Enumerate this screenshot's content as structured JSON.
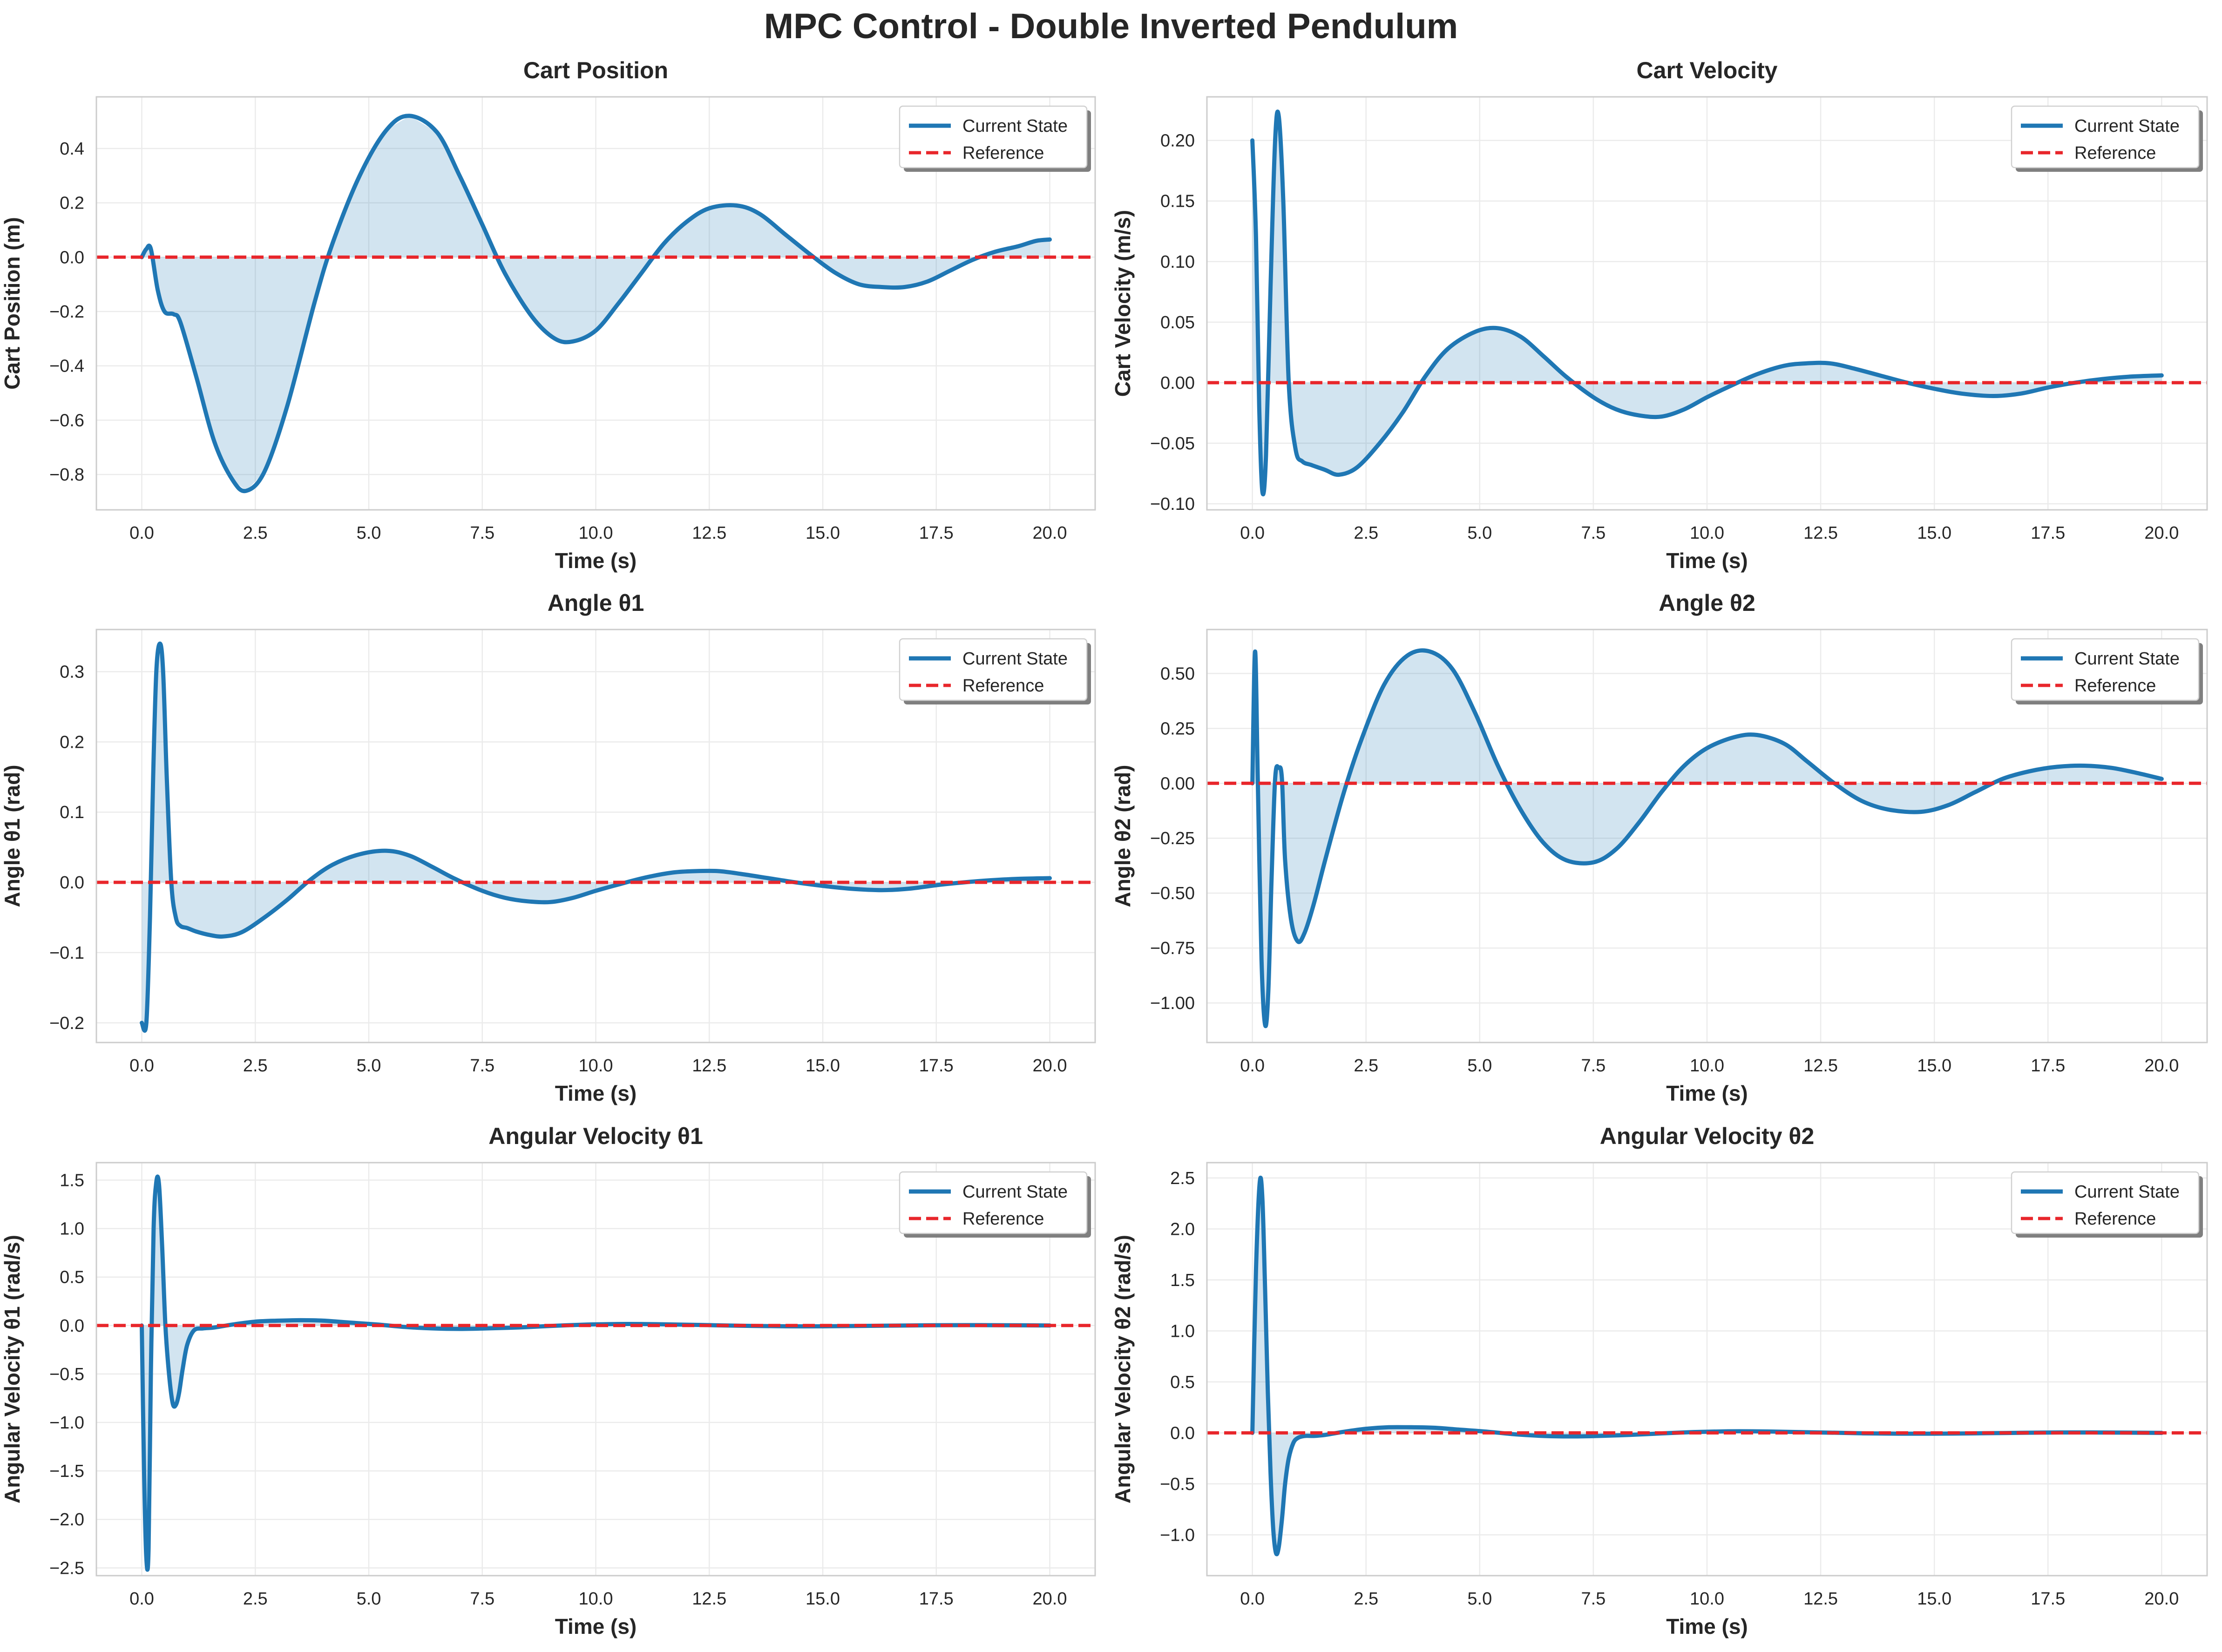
{
  "figure": {
    "title": "MPC Control - Double Inverted Pendulum"
  },
  "style": {
    "current_color": "#1f77b4",
    "reference_color": "#e8262b",
    "fill_color": "#1f77b4",
    "fill_opacity": 0.2,
    "grid_color": "#ebebeb",
    "frame_color": "#cccccc",
    "legend_shadow": "#7f7f7f"
  },
  "chart_data": [
    {
      "type": "line",
      "title": "Cart Position",
      "xlabel": "Time (s)",
      "ylabel": "Cart Position (m)",
      "xlim": [
        -1,
        21
      ],
      "ylim": [
        -0.93,
        0.59
      ],
      "xticks": [
        0,
        2.5,
        5,
        7.5,
        10,
        12.5,
        15,
        17.5,
        20
      ],
      "xtick_labels": [
        "0.0",
        "2.5",
        "5.0",
        "7.5",
        "10.0",
        "12.5",
        "15.0",
        "17.5",
        "20.0"
      ],
      "yticks": [
        -0.8,
        -0.6,
        -0.4,
        -0.2,
        0,
        0.2,
        0.4
      ],
      "ytick_labels": [
        "−0.8",
        "−0.6",
        "−0.4",
        "−0.2",
        "0.0",
        "0.2",
        "0.4"
      ],
      "grid": true,
      "fill_between_reference": true,
      "legend": {
        "position": "upper-right",
        "entries": [
          "Current State",
          "Reference"
        ]
      },
      "series": [
        {
          "name": "Current State",
          "style": "solid",
          "x": [
            0,
            0.1,
            0.2,
            0.35,
            0.5,
            0.7,
            0.85,
            1.2,
            1.6,
            2.0,
            2.3,
            2.7,
            3.2,
            3.8,
            4.2,
            4.8,
            5.4,
            5.9,
            6.5,
            7.0,
            7.5,
            8.0,
            8.6,
            9.1,
            9.5,
            10.0,
            10.5,
            11.0,
            11.5,
            12.0,
            12.5,
            13.1,
            13.6,
            14.2,
            14.8,
            15.3,
            15.8,
            16.3,
            16.8,
            17.3,
            17.8,
            18.3,
            18.8,
            19.3,
            19.7,
            20.0
          ],
          "y": [
            0,
            0.03,
            0.03,
            -0.12,
            -0.2,
            -0.21,
            -0.24,
            -0.44,
            -0.68,
            -0.82,
            -0.86,
            -0.79,
            -0.55,
            -0.17,
            0.05,
            0.3,
            0.47,
            0.52,
            0.46,
            0.3,
            0.12,
            -0.06,
            -0.22,
            -0.3,
            -0.31,
            -0.27,
            -0.17,
            -0.06,
            0.05,
            0.13,
            0.18,
            0.19,
            0.16,
            0.08,
            0.0,
            -0.06,
            -0.1,
            -0.11,
            -0.11,
            -0.09,
            -0.05,
            -0.01,
            0.02,
            0.04,
            0.06,
            0.065
          ]
        },
        {
          "name": "Reference",
          "style": "dashed",
          "x": [
            -1,
            21
          ],
          "y": [
            0,
            0
          ]
        }
      ]
    },
    {
      "type": "line",
      "title": "Cart Velocity",
      "xlabel": "Time (s)",
      "ylabel": "Cart Velocity (m/s)",
      "xlim": [
        -1,
        21
      ],
      "ylim": [
        -0.105,
        0.236
      ],
      "xticks": [
        0,
        2.5,
        5,
        7.5,
        10,
        12.5,
        15,
        17.5,
        20
      ],
      "xtick_labels": [
        "0.0",
        "2.5",
        "5.0",
        "7.5",
        "10.0",
        "12.5",
        "15.0",
        "17.5",
        "20.0"
      ],
      "yticks": [
        -0.1,
        -0.05,
        0,
        0.05,
        0.1,
        0.15,
        0.2
      ],
      "ytick_labels": [
        "−0.10",
        "−0.05",
        "0.00",
        "0.05",
        "0.10",
        "0.15",
        "0.20"
      ],
      "grid": true,
      "fill_between_reference": true,
      "legend": {
        "position": "upper-right",
        "entries": [
          "Current State",
          "Reference"
        ]
      },
      "series": [
        {
          "name": "Current State",
          "style": "solid",
          "x": [
            0,
            0.08,
            0.15,
            0.22,
            0.3,
            0.4,
            0.5,
            0.58,
            0.68,
            0.8,
            0.95,
            1.1,
            1.3,
            1.6,
            1.9,
            2.3,
            2.8,
            3.3,
            3.8,
            4.3,
            4.9,
            5.4,
            5.9,
            6.4,
            6.9,
            7.5,
            8.0,
            8.5,
            9.0,
            9.5,
            10.0,
            10.5,
            11.1,
            11.7,
            12.2,
            12.7,
            13.2,
            13.8,
            14.4,
            15.0,
            15.6,
            16.3,
            16.9,
            17.5,
            18.1,
            18.7,
            19.3,
            20.0
          ],
          "y": [
            0.2,
            0.12,
            -0.02,
            -0.09,
            -0.06,
            0.08,
            0.2,
            0.22,
            0.15,
            0.0,
            -0.055,
            -0.065,
            -0.068,
            -0.072,
            -0.076,
            -0.07,
            -0.05,
            -0.025,
            0.005,
            0.028,
            0.042,
            0.045,
            0.038,
            0.022,
            0.005,
            -0.012,
            -0.022,
            -0.027,
            -0.028,
            -0.022,
            -0.012,
            -0.003,
            0.007,
            0.014,
            0.016,
            0.016,
            0.012,
            0.006,
            0.0,
            -0.005,
            -0.009,
            -0.011,
            -0.009,
            -0.004,
            0.0,
            0.003,
            0.005,
            0.006
          ]
        },
        {
          "name": "Reference",
          "style": "dashed",
          "x": [
            -1,
            21
          ],
          "y": [
            0,
            0
          ]
        }
      ]
    },
    {
      "type": "line",
      "title": "Angle θ1",
      "xlabel": "Time (s)",
      "ylabel": "Angle θ1 (rad)",
      "xlim": [
        -1,
        21
      ],
      "ylim": [
        -0.228,
        0.36
      ],
      "xticks": [
        0,
        2.5,
        5,
        7.5,
        10,
        12.5,
        15,
        17.5,
        20
      ],
      "xtick_labels": [
        "0.0",
        "2.5",
        "5.0",
        "7.5",
        "10.0",
        "12.5",
        "15.0",
        "17.5",
        "20.0"
      ],
      "yticks": [
        -0.2,
        -0.1,
        0,
        0.1,
        0.2,
        0.3
      ],
      "ytick_labels": [
        "−0.2",
        "−0.1",
        "0.0",
        "0.1",
        "0.2",
        "0.3"
      ],
      "grid": true,
      "fill_between_reference": true,
      "legend": {
        "position": "upper-right",
        "entries": [
          "Current State",
          "Reference"
        ]
      },
      "series": [
        {
          "name": "Current State",
          "style": "solid",
          "x": [
            0,
            0.1,
            0.18,
            0.25,
            0.32,
            0.4,
            0.47,
            0.55,
            0.65,
            0.75,
            0.85,
            1.0,
            1.2,
            1.5,
            1.8,
            2.2,
            2.7,
            3.2,
            3.7,
            4.2,
            4.8,
            5.4,
            5.9,
            6.4,
            6.9,
            7.5,
            8.0,
            8.5,
            9.0,
            9.5,
            10.0,
            10.5,
            11.1,
            11.7,
            12.2,
            12.7,
            13.2,
            13.8,
            14.4,
            15.0,
            15.6,
            16.3,
            16.9,
            17.5,
            18.1,
            18.7,
            19.3,
            20.0
          ],
          "y": [
            -0.2,
            -0.2,
            -0.05,
            0.15,
            0.3,
            0.34,
            0.3,
            0.15,
            0.0,
            -0.05,
            -0.062,
            -0.065,
            -0.07,
            -0.075,
            -0.077,
            -0.071,
            -0.05,
            -0.025,
            0.003,
            0.025,
            0.04,
            0.045,
            0.038,
            0.022,
            0.005,
            -0.012,
            -0.022,
            -0.027,
            -0.028,
            -0.022,
            -0.012,
            -0.003,
            0.007,
            0.014,
            0.016,
            0.016,
            0.012,
            0.006,
            0.0,
            -0.005,
            -0.009,
            -0.011,
            -0.009,
            -0.004,
            0.0,
            0.003,
            0.005,
            0.006
          ]
        },
        {
          "name": "Reference",
          "style": "dashed",
          "x": [
            -1,
            21
          ],
          "y": [
            0,
            0
          ]
        }
      ]
    },
    {
      "type": "line",
      "title": "Angle θ2",
      "xlabel": "Time (s)",
      "ylabel": "Angle θ2 (rad)",
      "xlim": [
        -1,
        21
      ],
      "ylim": [
        -1.18,
        0.7
      ],
      "xticks": [
        0,
        2.5,
        5,
        7.5,
        10,
        12.5,
        15,
        17.5,
        20
      ],
      "xtick_labels": [
        "0.0",
        "2.5",
        "5.0",
        "7.5",
        "10.0",
        "12.5",
        "15.0",
        "17.5",
        "20.0"
      ],
      "yticks": [
        -1.0,
        -0.75,
        -0.5,
        -0.25,
        0,
        0.25,
        0.5
      ],
      "ytick_labels": [
        "−1.00",
        "−0.75",
        "−0.50",
        "−0.25",
        "0.00",
        "0.25",
        "0.50"
      ],
      "grid": true,
      "fill_between_reference": true,
      "legend": {
        "position": "upper-right",
        "entries": [
          "Current State",
          "Reference"
        ]
      },
      "series": [
        {
          "name": "Current State",
          "style": "solid",
          "x": [
            0,
            0.06,
            0.12,
            0.2,
            0.28,
            0.35,
            0.42,
            0.5,
            0.58,
            0.65,
            0.72,
            0.85,
            1.0,
            1.15,
            1.35,
            1.6,
            2.0,
            2.4,
            2.9,
            3.4,
            3.9,
            4.4,
            4.9,
            5.4,
            5.9,
            6.4,
            6.9,
            7.5,
            8.0,
            8.5,
            9.0,
            9.5,
            10.0,
            10.6,
            11.1,
            11.7,
            12.2,
            12.8,
            13.4,
            14.0,
            14.7,
            15.3,
            15.9,
            16.5,
            17.1,
            17.7,
            18.3,
            18.9,
            19.5,
            20.0
          ],
          "y": [
            0.0,
            0.6,
            0.0,
            -0.8,
            -1.1,
            -0.95,
            -0.45,
            0.02,
            0.07,
            0.02,
            -0.35,
            -0.62,
            -0.72,
            -0.68,
            -0.55,
            -0.35,
            -0.05,
            0.2,
            0.45,
            0.58,
            0.6,
            0.52,
            0.32,
            0.08,
            -0.12,
            -0.27,
            -0.35,
            -0.36,
            -0.3,
            -0.18,
            -0.04,
            0.08,
            0.16,
            0.21,
            0.22,
            0.18,
            0.1,
            0.0,
            -0.08,
            -0.12,
            -0.13,
            -0.1,
            -0.04,
            0.02,
            0.055,
            0.075,
            0.08,
            0.07,
            0.045,
            0.02
          ]
        },
        {
          "name": "Reference",
          "style": "dashed",
          "x": [
            -1,
            21
          ],
          "y": [
            0,
            0
          ]
        }
      ]
    },
    {
      "type": "line",
      "title": "Angular Velocity θ1",
      "xlabel": "Time (s)",
      "ylabel": "Angular Velocity θ1 (rad/s)",
      "xlim": [
        -1,
        21
      ],
      "ylim": [
        -2.58,
        1.68
      ],
      "xticks": [
        0,
        2.5,
        5,
        7.5,
        10,
        12.5,
        15,
        17.5,
        20
      ],
      "xtick_labels": [
        "0.0",
        "2.5",
        "5.0",
        "7.5",
        "10.0",
        "12.5",
        "15.0",
        "17.5",
        "20.0"
      ],
      "yticks": [
        -2.5,
        -2.0,
        -1.5,
        -1.0,
        -0.5,
        0,
        0.5,
        1.0,
        1.5
      ],
      "ytick_labels": [
        "−2.5",
        "−2.0",
        "−1.5",
        "−1.0",
        "−0.5",
        "0.0",
        "0.5",
        "1.0",
        "1.5"
      ],
      "grid": true,
      "fill_between_reference": true,
      "legend": {
        "position": "upper-right",
        "entries": [
          "Current State",
          "Reference"
        ]
      },
      "series": [
        {
          "name": "Current State",
          "style": "solid",
          "x": [
            0,
            0.05,
            0.1,
            0.15,
            0.2,
            0.26,
            0.32,
            0.38,
            0.45,
            0.52,
            0.6,
            0.68,
            0.75,
            0.82,
            0.9,
            1.0,
            1.15,
            1.35,
            1.6,
            2.0,
            2.5,
            3.0,
            3.5,
            4.0,
            4.6,
            5.2,
            5.8,
            6.4,
            7.0,
            7.6,
            8.3,
            9.0,
            9.7,
            10.4,
            11.1,
            11.8,
            12.6,
            13.4,
            14.2,
            15.0,
            15.8,
            16.6,
            17.4,
            18.2,
            19.0,
            20.0
          ],
          "y": [
            0,
            -1.5,
            -2.4,
            -2.3,
            -0.5,
            1.0,
            1.48,
            1.45,
            0.8,
            0.0,
            -0.5,
            -0.8,
            -0.82,
            -0.7,
            -0.45,
            -0.2,
            -0.05,
            -0.03,
            -0.02,
            0.01,
            0.04,
            0.05,
            0.055,
            0.05,
            0.03,
            0.01,
            -0.015,
            -0.03,
            -0.035,
            -0.03,
            -0.02,
            -0.005,
            0.008,
            0.015,
            0.015,
            0.01,
            0.003,
            -0.004,
            -0.008,
            -0.008,
            -0.005,
            -0.001,
            0.003,
            0.004,
            0.003,
            0.0
          ]
        },
        {
          "name": "Reference",
          "style": "dashed",
          "x": [
            -1,
            21
          ],
          "y": [
            0,
            0
          ]
        }
      ]
    },
    {
      "type": "line",
      "title": "Angular Velocity θ2",
      "xlabel": "Time (s)",
      "ylabel": "Angular Velocity θ2 (rad/s)",
      "xlim": [
        -1,
        21
      ],
      "ylim": [
        -1.4,
        2.65
      ],
      "xticks": [
        0,
        2.5,
        5,
        7.5,
        10,
        12.5,
        15,
        17.5,
        20
      ],
      "xtick_labels": [
        "0.0",
        "2.5",
        "5.0",
        "7.5",
        "10.0",
        "12.5",
        "15.0",
        "17.5",
        "20.0"
      ],
      "yticks": [
        -1.0,
        -0.5,
        0,
        0.5,
        1.0,
        1.5,
        2.0,
        2.5
      ],
      "ytick_labels": [
        "−1.0",
        "−0.5",
        "0.0",
        "0.5",
        "1.0",
        "1.5",
        "2.0",
        "2.5"
      ],
      "grid": true,
      "fill_between_reference": true,
      "legend": {
        "position": "upper-right",
        "entries": [
          "Current State",
          "Reference"
        ]
      },
      "series": [
        {
          "name": "Current State",
          "style": "solid",
          "x": [
            0,
            0.08,
            0.16,
            0.22,
            0.28,
            0.34,
            0.4,
            0.46,
            0.52,
            0.58,
            0.65,
            0.72,
            0.8,
            0.9,
            1.0,
            1.15,
            1.35,
            1.6,
            2.0,
            2.5,
            3.0,
            3.5,
            4.0,
            4.6,
            5.2,
            5.8,
            6.4,
            7.0,
            7.6,
            8.3,
            9.0,
            9.7,
            10.4,
            11.1,
            11.8,
            12.6,
            13.4,
            14.2,
            15.0,
            15.8,
            16.6,
            17.4,
            18.2,
            19.0,
            20.0
          ],
          "y": [
            0,
            1.6,
            2.45,
            2.3,
            1.4,
            0.4,
            -0.4,
            -0.95,
            -1.18,
            -1.12,
            -0.85,
            -0.5,
            -0.25,
            -0.1,
            -0.05,
            -0.03,
            -0.03,
            -0.02,
            0.01,
            0.04,
            0.055,
            0.055,
            0.05,
            0.03,
            0.01,
            -0.015,
            -0.03,
            -0.035,
            -0.03,
            -0.02,
            -0.005,
            0.008,
            0.015,
            0.015,
            0.01,
            0.003,
            -0.004,
            -0.008,
            -0.008,
            -0.005,
            -0.001,
            0.003,
            0.004,
            0.003,
            0.0
          ]
        },
        {
          "name": "Reference",
          "style": "dashed",
          "x": [
            -1,
            21
          ],
          "y": [
            0,
            0
          ]
        }
      ]
    }
  ]
}
